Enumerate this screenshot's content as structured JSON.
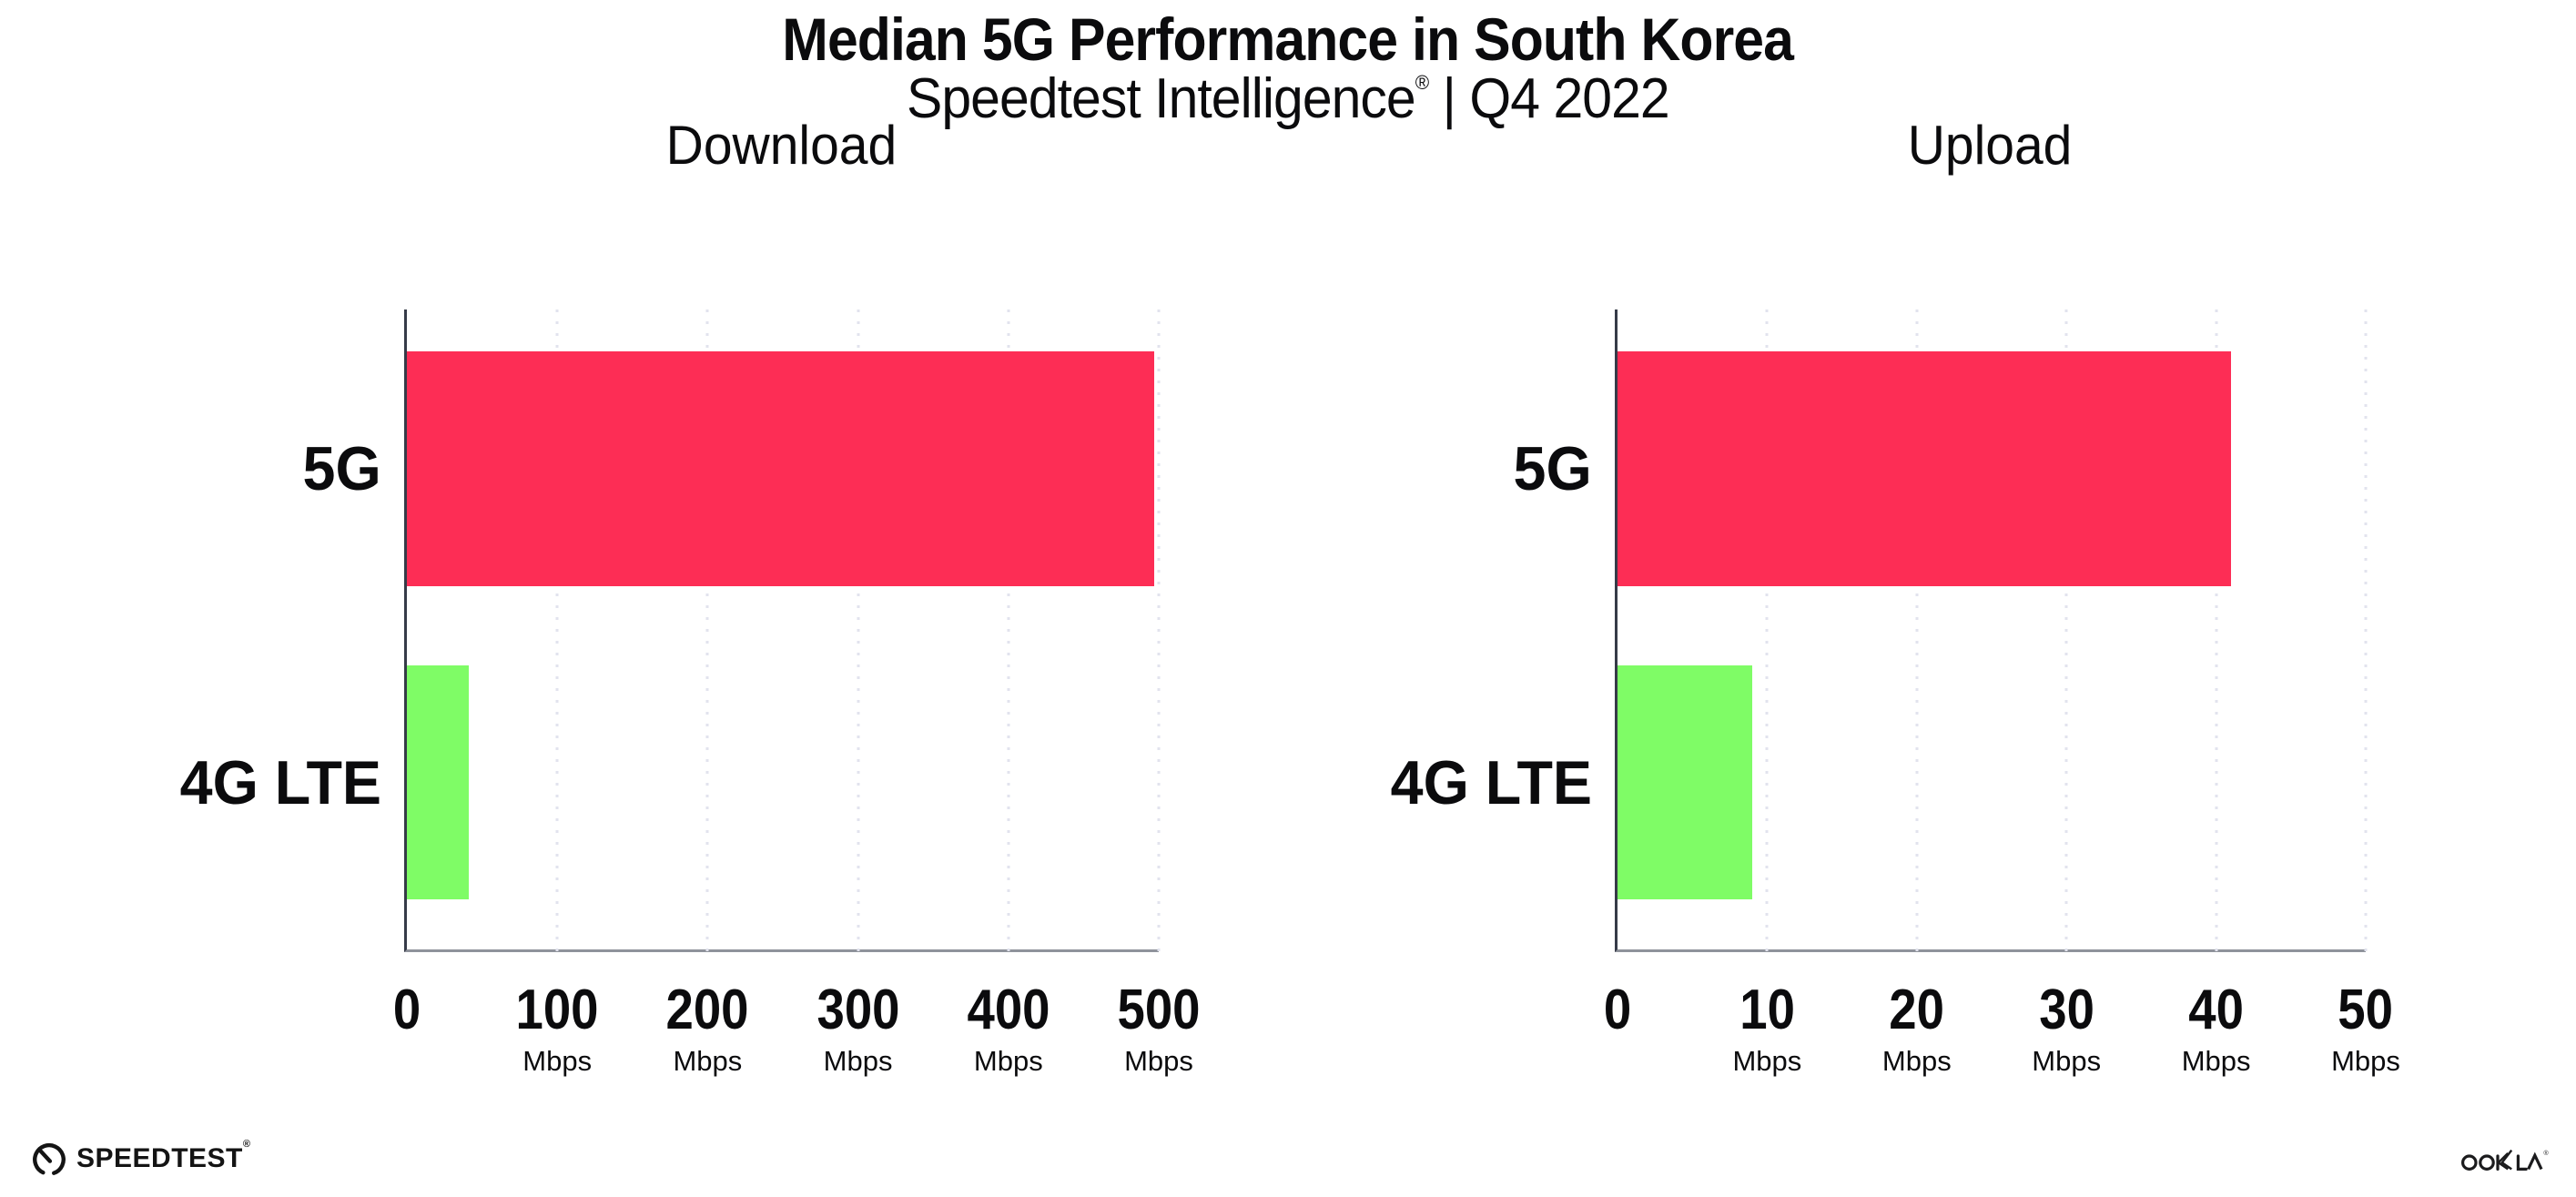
{
  "header": {
    "title": "Median 5G Performance in South Korea",
    "subtitle_brand": "Speedtest Intelligence",
    "subtitle_reg": "®",
    "subtitle_rest": " | Q4 2022"
  },
  "footer": {
    "speedtest_label": "SPEEDTEST",
    "speedtest_reg": "®",
    "ookla_label": "OOKLA"
  },
  "colors": {
    "bar_5g": "#FD2D55",
    "bar_4g_lte": "#7FFC66",
    "gridline": "#E2E3EE",
    "axis_left": "#363B48",
    "axis_bottom": "#8F939B",
    "text": "#0B0B0D"
  },
  "chart_data": [
    {
      "type": "bar",
      "orientation": "horizontal",
      "title": "Download",
      "categories": [
        "5G",
        "4G LTE"
      ],
      "values": [
        497,
        41
      ],
      "bar_colors": [
        "#FD2D55",
        "#7FFC66"
      ],
      "unit": "Mbps",
      "xlabel": "",
      "ylabel": "",
      "xlim": [
        0,
        500
      ],
      "xticks": [
        0,
        100,
        200,
        300,
        400,
        500
      ],
      "tick_unit_suffix": "Mbps",
      "grid": "dotted-vertical",
      "legend": "none"
    },
    {
      "type": "bar",
      "orientation": "horizontal",
      "title": "Upload",
      "categories": [
        "5G",
        "4G LTE"
      ],
      "values": [
        41,
        9
      ],
      "bar_colors": [
        "#FD2D55",
        "#7FFC66"
      ],
      "unit": "Mbps",
      "xlabel": "",
      "ylabel": "",
      "xlim": [
        0,
        50
      ],
      "xticks": [
        0,
        10,
        20,
        30,
        40,
        50
      ],
      "tick_unit_suffix": "Mbps",
      "grid": "dotted-vertical",
      "legend": "none"
    }
  ]
}
